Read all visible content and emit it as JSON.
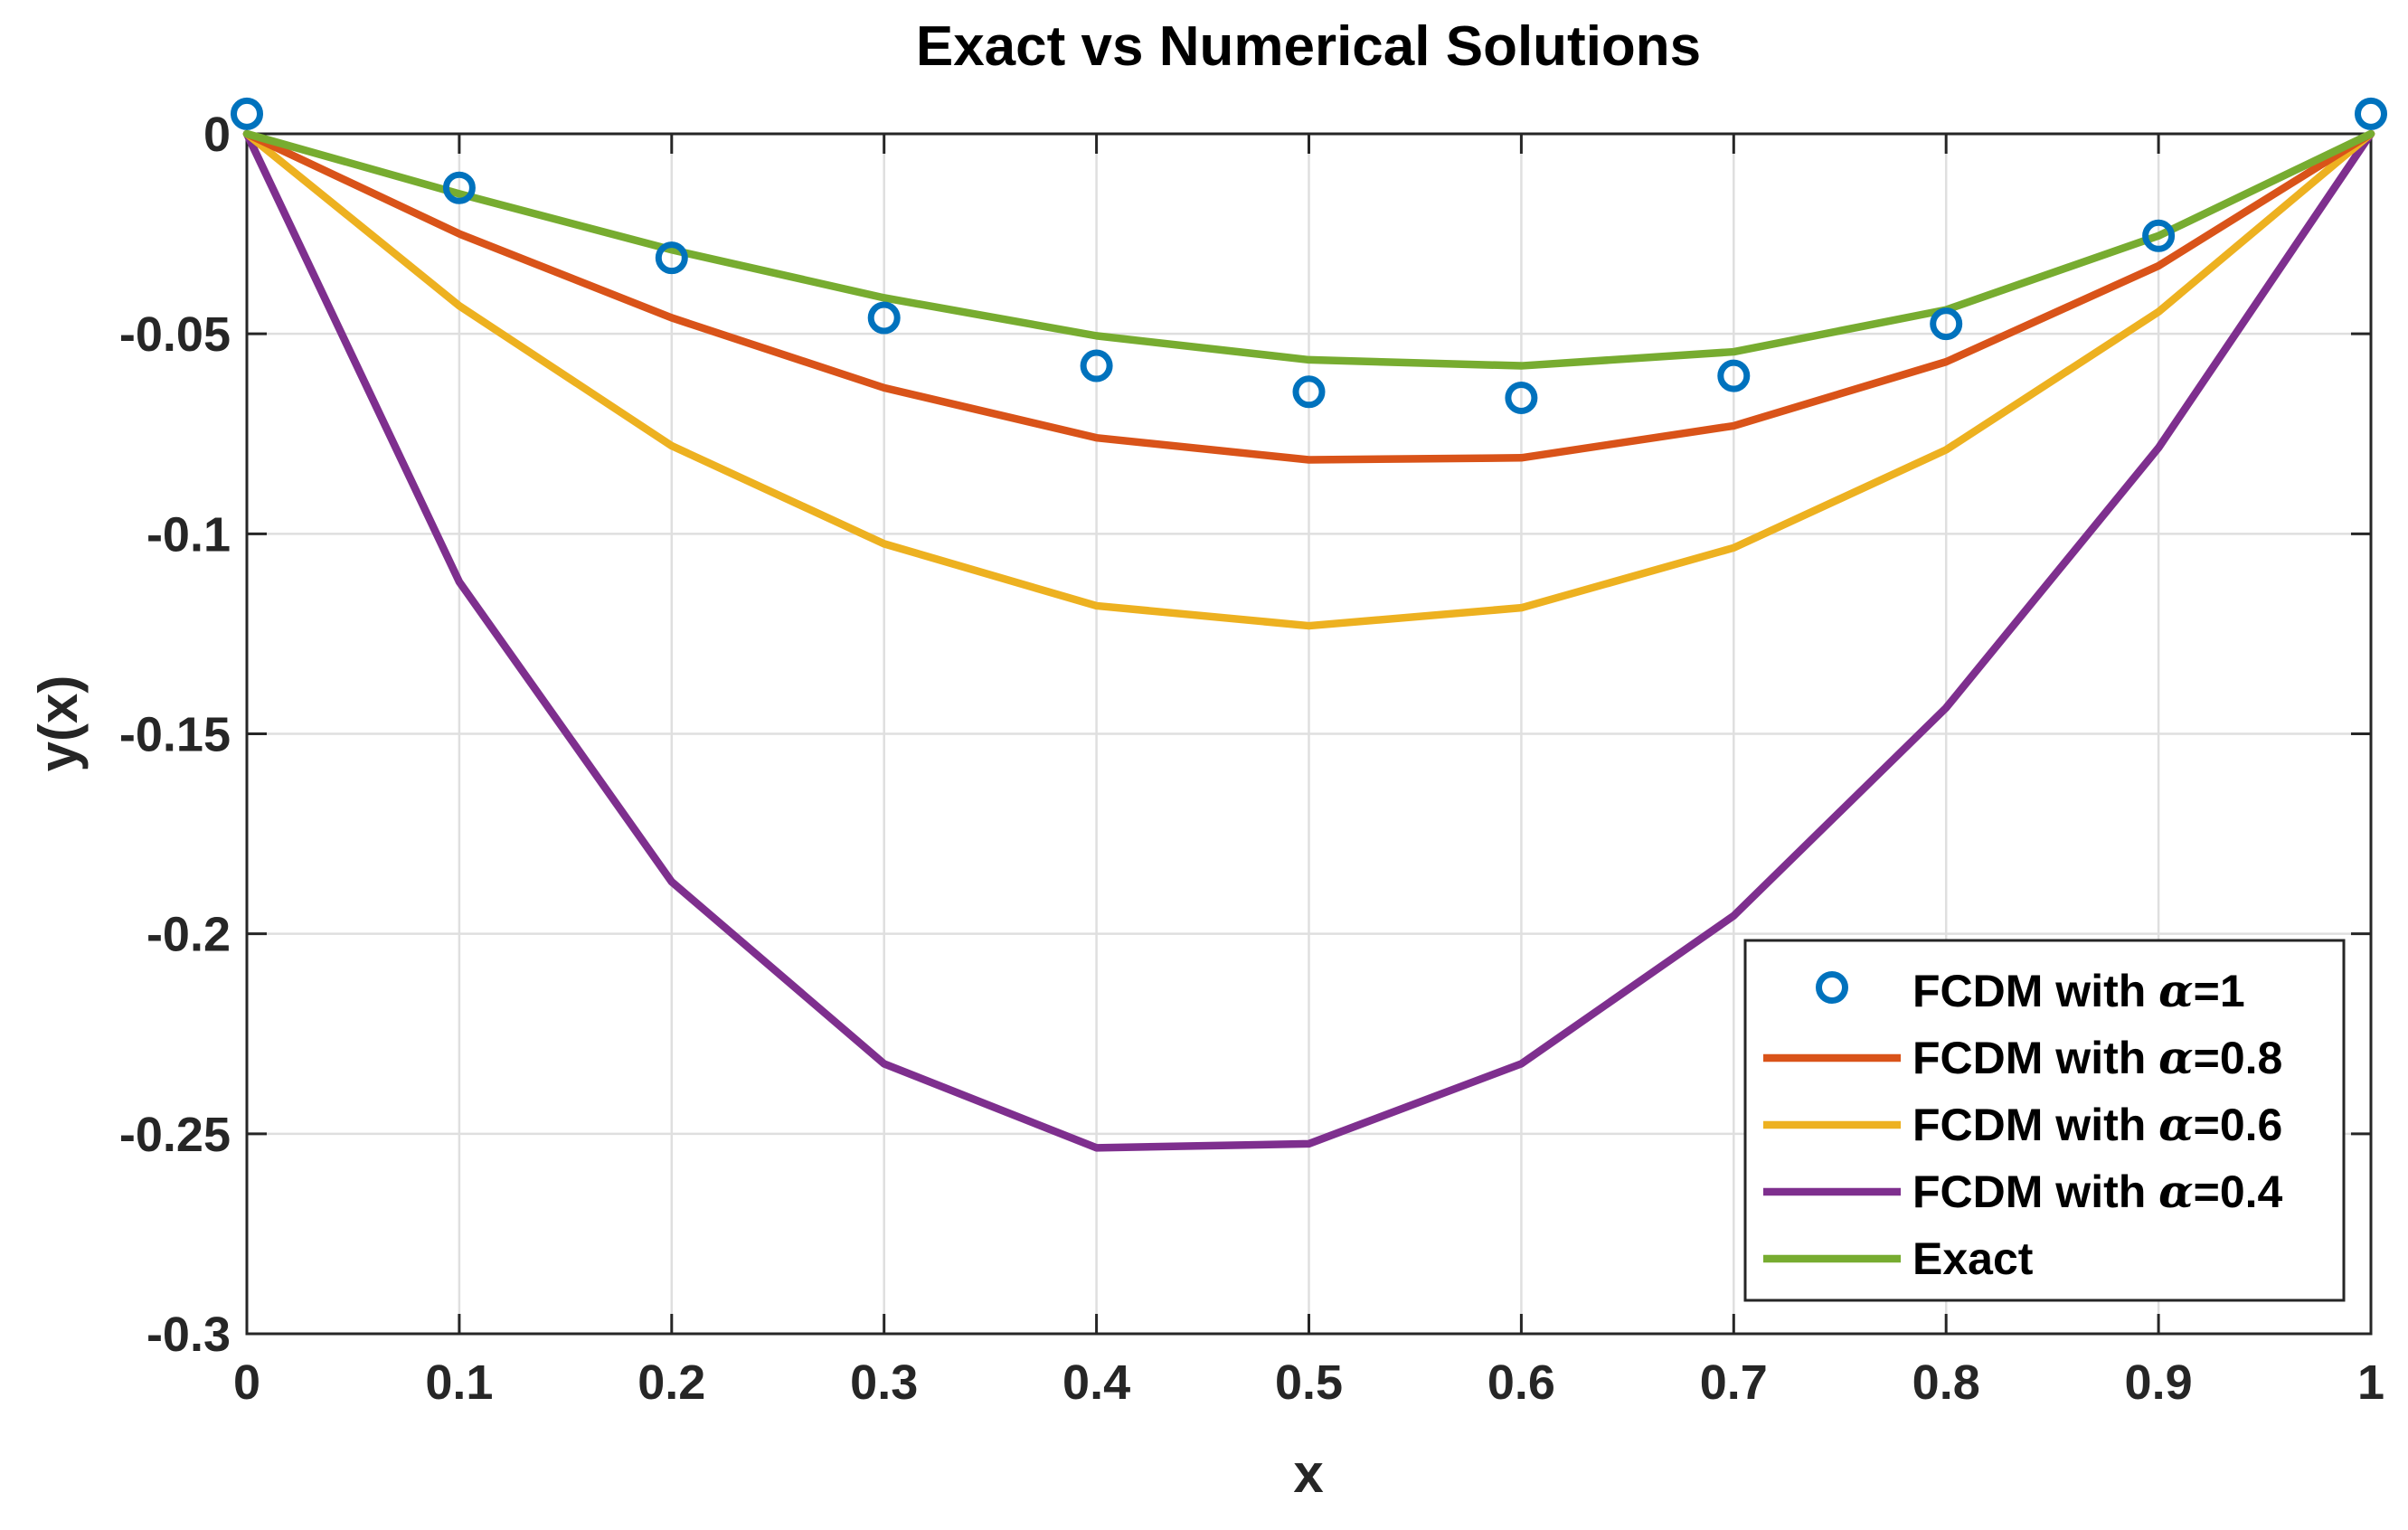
{
  "chart_data": {
    "type": "line",
    "title": "Exact vs Numerical Solutions",
    "xlabel": "x",
    "ylabel": "y(x)",
    "xlim": [
      0,
      1
    ],
    "ylim": [
      -0.3,
      0
    ],
    "xticks": [
      0,
      0.1,
      0.2,
      0.3,
      0.4,
      0.5,
      0.6,
      0.7,
      0.8,
      0.9,
      1
    ],
    "xtick_labels": [
      "0",
      "0.1",
      "0.2",
      "0.3",
      "0.4",
      "0.5",
      "0.6",
      "0.7",
      "0.8",
      "0.9",
      "1"
    ],
    "yticks": [
      0,
      -0.05,
      -0.1,
      -0.15,
      -0.2,
      -0.25,
      -0.3
    ],
    "ytick_labels": [
      "0",
      "-0.05",
      "-0.1",
      "-0.15",
      "-0.2",
      "-0.25",
      "-0.3"
    ],
    "grid": true,
    "legend_position": "bottom-right",
    "x": [
      0,
      0.1,
      0.2,
      0.3,
      0.4,
      0.5,
      0.6,
      0.7,
      0.8,
      0.9,
      1
    ],
    "series": [
      {
        "name": "FCDM with α=1",
        "legend_prefix": "FCDM with ",
        "legend_symbol": "α",
        "legend_suffix": "=1",
        "style": "markers",
        "color": "#0072BD",
        "values": [
          0.005,
          -0.0135,
          -0.031,
          -0.046,
          -0.058,
          -0.0645,
          -0.066,
          -0.0605,
          -0.0475,
          -0.0255,
          0.005
        ]
      },
      {
        "name": "FCDM with α=0.8",
        "legend_prefix": "FCDM with ",
        "legend_symbol": "α",
        "legend_suffix": "=0.8",
        "style": "line",
        "color": "#D95319",
        "values": [
          0,
          -0.025,
          -0.046,
          -0.0635,
          -0.076,
          -0.0815,
          -0.081,
          -0.073,
          -0.057,
          -0.033,
          0
        ]
      },
      {
        "name": "FCDM with α=0.6",
        "legend_prefix": "FCDM with ",
        "legend_symbol": "α",
        "legend_suffix": "=0.6",
        "style": "line",
        "color": "#EDB120",
        "values": [
          0,
          -0.043,
          -0.078,
          -0.1025,
          -0.118,
          -0.123,
          -0.1185,
          -0.1035,
          -0.079,
          -0.0445,
          0
        ]
      },
      {
        "name": "FCDM with α=0.4",
        "legend_prefix": "FCDM with ",
        "legend_symbol": "α",
        "legend_suffix": "=0.4",
        "style": "line",
        "color": "#7E2F8E",
        "values": [
          0,
          -0.112,
          -0.187,
          -0.2325,
          -0.2535,
          -0.2525,
          -0.2325,
          -0.1955,
          -0.1435,
          -0.0785,
          0
        ]
      },
      {
        "name": "Exact",
        "legend_prefix": "Exact",
        "legend_symbol": "",
        "legend_suffix": "",
        "style": "line",
        "color": "#77AC30",
        "values": [
          0,
          -0.015,
          -0.029,
          -0.041,
          -0.0505,
          -0.0565,
          -0.058,
          -0.0545,
          -0.044,
          -0.0255,
          0
        ]
      }
    ]
  }
}
